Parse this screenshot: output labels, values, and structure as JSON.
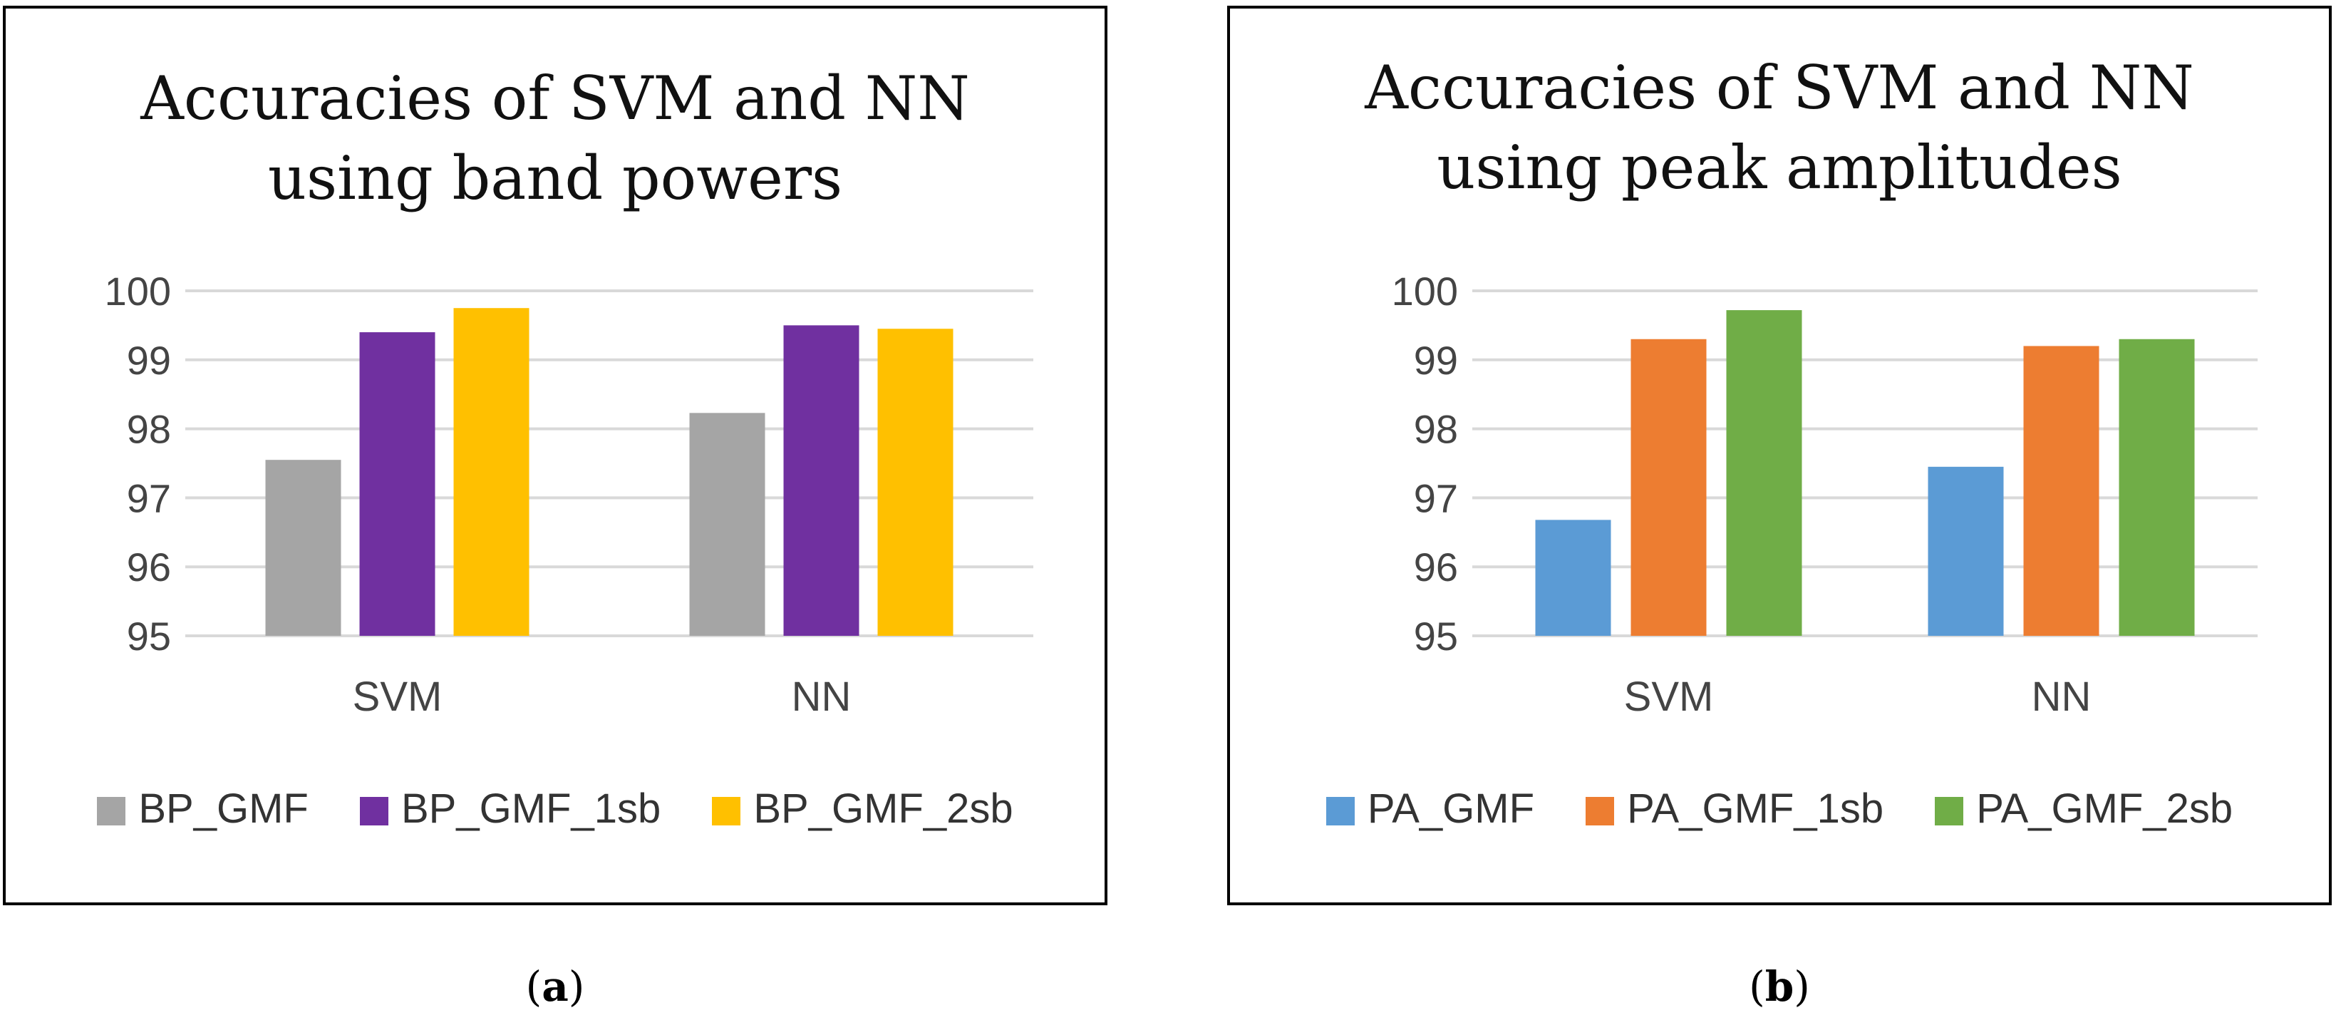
{
  "chart_data": [
    {
      "type": "bar",
      "title": "Accuracies  of SVM and NN using band powers",
      "title_lines": [
        "Accuracies  of SVM and NN",
        "using band powers"
      ],
      "categories": [
        "SVM",
        "NN"
      ],
      "series": [
        {
          "name": "BP_GMF",
          "color": "#a5a5a5",
          "values": [
            97.55,
            98.23
          ]
        },
        {
          "name": "BP_GMF_1sb",
          "color": "#7030a0",
          "values": [
            99.4,
            99.5
          ]
        },
        {
          "name": "BP_GMF_2sb",
          "color": "#ffc000",
          "values": [
            99.75,
            99.45
          ]
        }
      ],
      "ylim": [
        95,
        100
      ],
      "yticks": [
        95,
        96,
        97,
        98,
        99,
        100
      ],
      "xlabel": "",
      "ylabel": "",
      "grid": true,
      "legend": "bottom"
    },
    {
      "type": "bar",
      "title": "Accuracies  of SVM and NN using peak amplitudes",
      "title_lines": [
        "Accuracies  of SVM and NN",
        "using peak amplitudes"
      ],
      "categories": [
        "SVM",
        "NN"
      ],
      "series": [
        {
          "name": "PA_GMF",
          "color": "#5b9bd5",
          "values": [
            96.68,
            97.45
          ]
        },
        {
          "name": "PA_GMF_1sb",
          "color": "#ed7d31",
          "values": [
            99.3,
            99.2
          ]
        },
        {
          "name": "PA_GMF_2sb",
          "color": "#70ad47",
          "values": [
            99.72,
            99.3
          ]
        }
      ],
      "ylim": [
        95,
        100
      ],
      "yticks": [
        95,
        96,
        97,
        98,
        99,
        100
      ],
      "xlabel": "",
      "ylabel": "",
      "grid": true,
      "legend": "bottom"
    }
  ],
  "captions": {
    "a": {
      "open": "(",
      "letter": "a",
      "close": ")"
    },
    "b": {
      "open": "(",
      "letter": "b",
      "close": ")"
    }
  }
}
